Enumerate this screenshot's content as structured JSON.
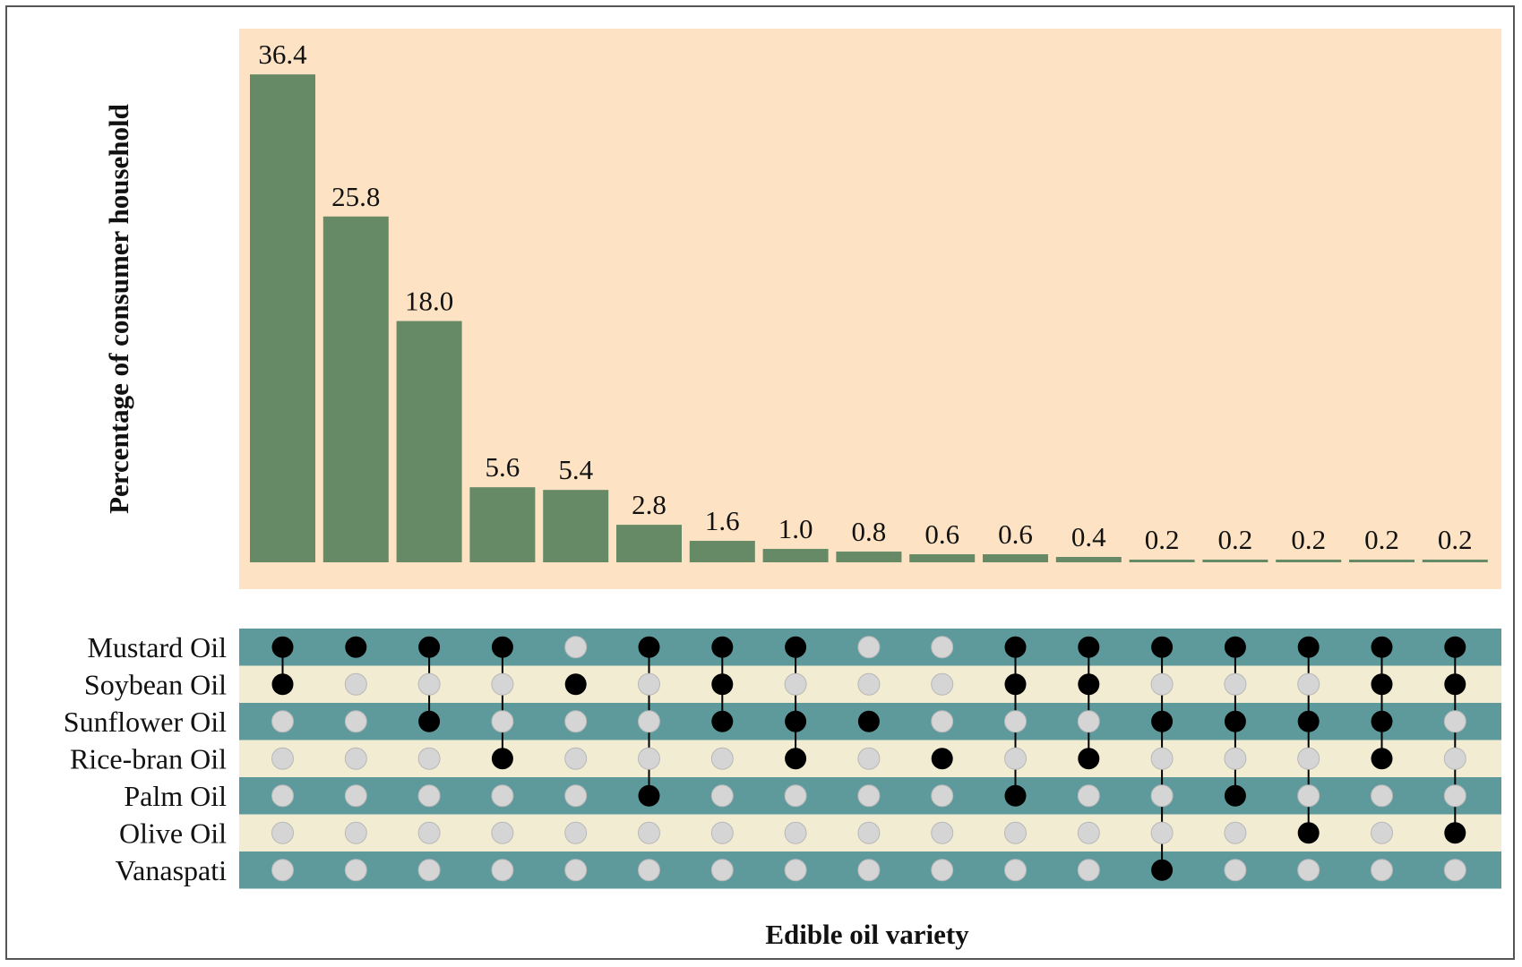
{
  "chart_data": {
    "type": "bar",
    "xlabel": "Edible oil variety",
    "ylabel": "Percentage of consumer household",
    "values": [
      36.4,
      25.8,
      18.0,
      5.6,
      5.4,
      2.8,
      1.6,
      1.0,
      0.8,
      0.6,
      0.6,
      0.4,
      0.2,
      0.2,
      0.2,
      0.2,
      0.2
    ],
    "value_labels": [
      "36.4",
      "25.8",
      "18.0",
      "5.6",
      "5.4",
      "2.8",
      "1.6",
      "1.0",
      "0.8",
      "0.6",
      "0.6",
      "0.4",
      "0.2",
      "0.2",
      "0.2",
      "0.2",
      "0.2"
    ],
    "sets": [
      "Mustard Oil",
      "Soybean Oil",
      "Sunflower Oil",
      "Rice-bran Oil",
      "Palm Oil",
      "Olive Oil",
      "Vanaspati"
    ],
    "combinations": [
      [
        "Mustard Oil",
        "Soybean Oil"
      ],
      [
        "Mustard Oil"
      ],
      [
        "Mustard Oil",
        "Sunflower Oil"
      ],
      [
        "Mustard Oil",
        "Rice-bran Oil"
      ],
      [
        "Soybean Oil"
      ],
      [
        "Mustard Oil",
        "Palm Oil"
      ],
      [
        "Mustard Oil",
        "Soybean Oil",
        "Sunflower Oil"
      ],
      [
        "Mustard Oil",
        "Sunflower Oil",
        "Rice-bran Oil"
      ],
      [
        "Sunflower Oil"
      ],
      [
        "Rice-bran Oil"
      ],
      [
        "Mustard Oil",
        "Soybean Oil",
        "Palm Oil"
      ],
      [
        "Mustard Oil",
        "Soybean Oil",
        "Rice-bran Oil"
      ],
      [
        "Mustard Oil",
        "Sunflower Oil",
        "Vanaspati"
      ],
      [
        "Mustard Oil",
        "Sunflower Oil",
        "Palm Oil"
      ],
      [
        "Mustard Oil",
        "Sunflower Oil",
        "Olive Oil"
      ],
      [
        "Mustard Oil",
        "Soybean Oil",
        "Sunflower Oil",
        "Rice-bran Oil"
      ],
      [
        "Mustard Oil",
        "Soybean Oil",
        "Olive Oil"
      ]
    ],
    "ylim": [
      0,
      40
    ],
    "grid": false,
    "legend": "none"
  },
  "colors": {
    "bar_panel_bg": "#fde3c3",
    "bar_fill": "#678a66",
    "row_dark": "#5e9a9c",
    "row_light": "#f2edd2",
    "dot_active": "#000000",
    "dot_inactive": "#d5d5d5",
    "dot_inactive_stroke": "#b8b8b8",
    "text": "#111111"
  }
}
